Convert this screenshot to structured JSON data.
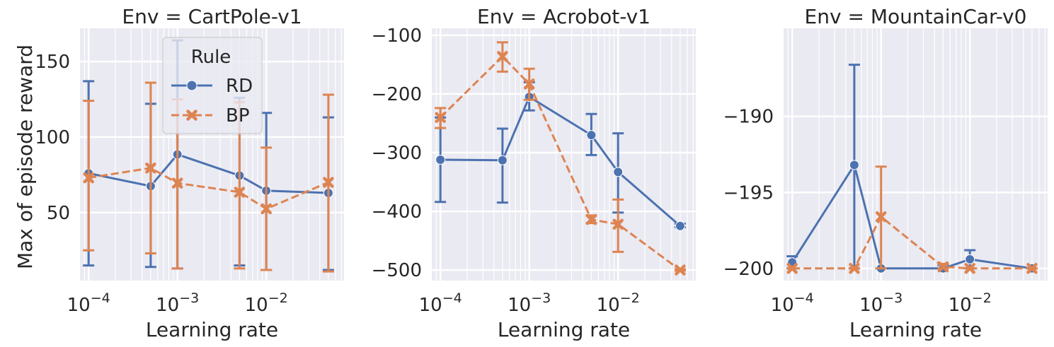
{
  "figure": {
    "ylabel": "Max of episode reward",
    "legend": {
      "title": "Rule",
      "placement": "top-right (first panel)",
      "entries": [
        {
          "name": "RD",
          "color": "#4c72b0",
          "marker": "circle",
          "line": "solid"
        },
        {
          "name": "BP",
          "color": "#dd8452",
          "marker": "x",
          "line": "dashed"
        }
      ]
    }
  },
  "chart_data": [
    {
      "type": "line",
      "title": "Env = CartPole-v1",
      "xlabel": "Learning rate",
      "ylabel": "Max of episode reward",
      "xscale": "log",
      "xlim": [
        8e-05,
        0.075
      ],
      "ylim": [
        5,
        172
      ],
      "x_ticks": [
        {
          "value": 0.0001,
          "label": "10^-4"
        },
        {
          "value": 0.001,
          "label": "10^-3"
        },
        {
          "value": 0.01,
          "label": "10^-2"
        }
      ],
      "y_ticks": [
        50,
        100,
        150
      ],
      "grid": true,
      "x": [
        0.0001,
        0.0005,
        0.001,
        0.005,
        0.01,
        0.05
      ],
      "series": [
        {
          "name": "RD",
          "values": [
            76,
            67.5,
            88.5,
            74.5,
            64.5,
            63
          ],
          "err_low": [
            15,
            14,
            13,
            15,
            12,
            12
          ],
          "err_high": [
            137,
            122,
            164,
            126,
            116,
            113
          ]
        },
        {
          "name": "BP",
          "values": [
            73,
            79.5,
            69.5,
            63.5,
            52.5,
            70
          ],
          "err_low": [
            25,
            23,
            13,
            13,
            12,
            11
          ],
          "err_high": [
            124,
            136,
            125,
            123,
            93,
            128
          ]
        }
      ]
    },
    {
      "type": "line",
      "title": "Env = Acrobot-v1",
      "xlabel": "Learning rate",
      "ylabel": "",
      "xscale": "log",
      "xlim": [
        8e-05,
        0.075
      ],
      "ylim": [
        -518,
        -88
      ],
      "x_ticks": [
        {
          "value": 0.0001,
          "label": "10^-4"
        },
        {
          "value": 0.001,
          "label": "10^-3"
        },
        {
          "value": 0.01,
          "label": "10^-2"
        }
      ],
      "y_ticks": [
        -500,
        -400,
        -300,
        -200,
        -100
      ],
      "grid": true,
      "x": [
        0.0001,
        0.0005,
        0.001,
        0.005,
        0.01,
        0.05
      ],
      "series": [
        {
          "name": "RD",
          "values": [
            -312,
            -313,
            -205,
            -270,
            -333,
            -425
          ],
          "err_low": [
            -384,
            -385,
            -228,
            -304,
            -402,
            -427
          ],
          "err_high": [
            -240,
            -259,
            -180,
            -234,
            -267,
            -421
          ]
        },
        {
          "name": "BP",
          "values": [
            -240,
            -136,
            -183,
            -414,
            -422,
            -500
          ],
          "err_low": [
            -258,
            -162,
            -210,
            -420,
            -469,
            -501
          ],
          "err_high": [
            -224,
            -112,
            -157,
            -407,
            -380,
            -499
          ]
        }
      ]
    },
    {
      "type": "line",
      "title": "Env = MountainCar-v0",
      "xlabel": "Learning rate",
      "ylabel": "",
      "xscale": "log",
      "xlim": [
        8e-05,
        0.075
      ],
      "ylim": [
        -200.8,
        -184.2
      ],
      "x_ticks": [
        {
          "value": 0.0001,
          "label": "10^-4"
        },
        {
          "value": 0.001,
          "label": "10^-3"
        },
        {
          "value": 0.01,
          "label": "10^-2"
        }
      ],
      "y_ticks": [
        -200,
        -195,
        -190
      ],
      "grid": true,
      "x": [
        0.0001,
        0.0005,
        0.001,
        0.005,
        0.01,
        0.05
      ],
      "series": [
        {
          "name": "RD",
          "values": [
            -199.6,
            -193.2,
            -200,
            -200,
            -199.4,
            -200
          ],
          "err_low": [
            -200,
            -200,
            -200,
            -200,
            -200,
            -200
          ],
          "err_high": [
            -199.2,
            -186.6,
            -200,
            -199.8,
            -198.8,
            -200
          ]
        },
        {
          "name": "BP",
          "values": [
            -200,
            -200,
            -196.6,
            -199.9,
            -200,
            -200
          ],
          "err_low": [
            -200,
            -200,
            -200,
            -200,
            -200,
            -200
          ],
          "err_high": [
            -200,
            -200,
            -193.3,
            -199.7,
            -200,
            -200
          ]
        }
      ]
    }
  ]
}
